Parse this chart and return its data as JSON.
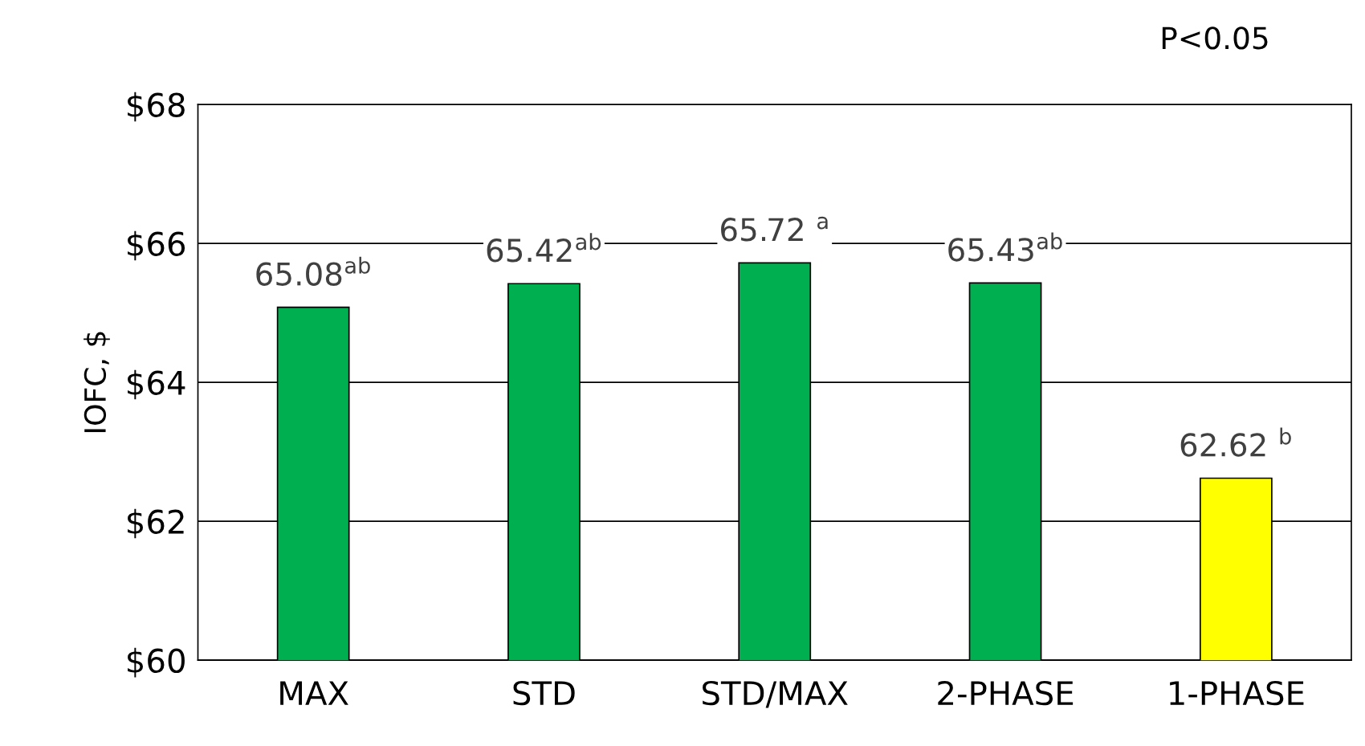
{
  "chart_data": {
    "type": "bar",
    "ylabel": "IOFC, $",
    "categories": [
      "MAX",
      "STD",
      "STD/MAX",
      "2-PHASE",
      "1-PHASE"
    ],
    "values": [
      65.08,
      65.42,
      65.72,
      65.43,
      62.62
    ],
    "colors": [
      "#00b050",
      "#00b050",
      "#00b050",
      "#00b050",
      "#ffff00"
    ],
    "value_labels": [
      "65.08$^{ab}$",
      "65.42$^{ab}$",
      "65.72 $^{a}$",
      "65.43$^{ab}$",
      "62.62 $^{b}$"
    ],
    "ylim": [
      60,
      68
    ],
    "yticks": [
      {
        "value": 60,
        "label": "$60"
      },
      {
        "value": 62,
        "label": "$62"
      },
      {
        "value": 64,
        "label": "$64"
      },
      {
        "value": 66,
        "label": "$66"
      },
      {
        "value": 68,
        "label": "$68"
      }
    ],
    "grid": "y",
    "annotations": [
      "P<0.05"
    ]
  }
}
